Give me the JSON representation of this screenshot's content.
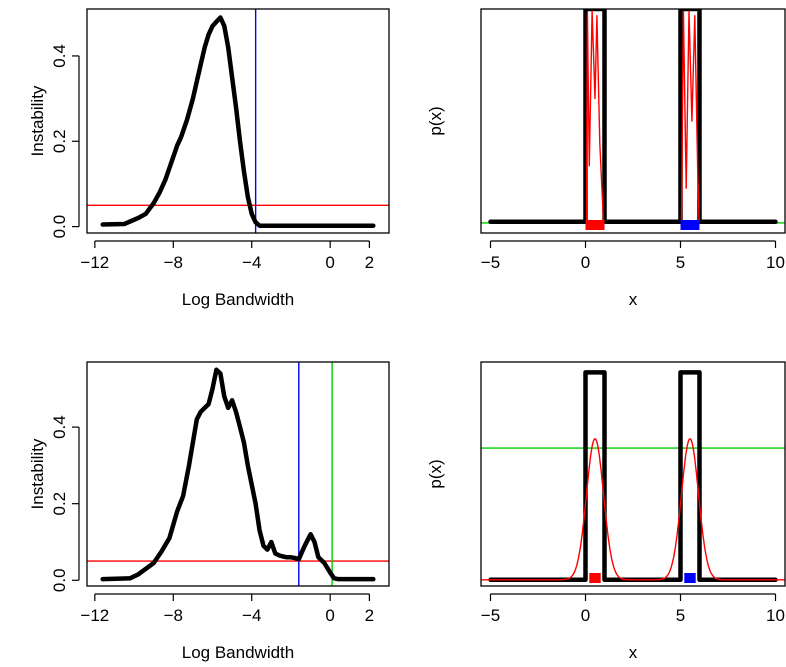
{
  "chart_data": [
    {
      "type": "line",
      "panel": "top-left",
      "xlabel": "Log Bandwidth",
      "ylabel": "Instability",
      "xlim": [
        -12.4,
        3.0
      ],
      "ylim": [
        -0.015,
        0.51
      ],
      "xticks": [
        -12,
        -8,
        -4,
        0,
        2
      ],
      "yticks": [
        0.0,
        0.2,
        0.4
      ],
      "series": [
        {
          "style": "thick-black",
          "x": [
            -11.6,
            -10.5,
            -10.2,
            -9.8,
            -9.4,
            -9.0,
            -8.7,
            -8.4,
            -8.1,
            -7.8,
            -7.6,
            -7.3,
            -7.0,
            -6.8,
            -6.6,
            -6.4,
            -6.2,
            -6.0,
            -5.8,
            -5.6,
            -5.4,
            -5.2,
            -5.0,
            -4.8,
            -4.6,
            -4.4,
            -4.2,
            -4.0,
            -3.8,
            -3.6,
            -3.0,
            -2.0,
            0.0,
            2.2
          ],
          "y": [
            0.005,
            0.006,
            0.012,
            0.02,
            0.03,
            0.055,
            0.08,
            0.11,
            0.15,
            0.19,
            0.21,
            0.25,
            0.3,
            0.34,
            0.38,
            0.42,
            0.45,
            0.47,
            0.48,
            0.49,
            0.47,
            0.42,
            0.35,
            0.28,
            0.2,
            0.13,
            0.07,
            0.03,
            0.01,
            0.002,
            0.002,
            0.002,
            0.002,
            0.002
          ]
        }
      ],
      "hlines": [
        {
          "y": 0.05,
          "color": "#ff0000"
        }
      ],
      "vlines": [
        {
          "x": -3.8,
          "color": "#0000ff"
        }
      ]
    },
    {
      "type": "line",
      "panel": "top-right",
      "xlabel": "x",
      "ylabel": "p(x)",
      "xlim": [
        -5.5,
        10.5
      ],
      "ylim": [
        0,
        1
      ],
      "xticks": [
        -5,
        0,
        5,
        10
      ],
      "series": [
        {
          "style": "thick-black",
          "x": [
            -5,
            0,
            0,
            1,
            1,
            5,
            5,
            6,
            6,
            10
          ],
          "y": [
            0.05,
            0.05,
            1,
            1,
            0.05,
            0.05,
            1,
            1,
            0.05,
            0.05
          ]
        },
        {
          "style": "thin-red",
          "x": [
            0.05,
            0.1,
            0.2,
            0.35,
            0.5,
            0.6,
            0.75,
            0.95
          ],
          "y": [
            0.05,
            0.98,
            0.3,
            0.99,
            0.6,
            0.97,
            0.4,
            0.05
          ]
        },
        {
          "style": "thin-red",
          "x": [
            5.05,
            5.15,
            5.3,
            5.45,
            5.6,
            5.75,
            5.9,
            5.98
          ],
          "y": [
            0.05,
            0.99,
            0.2,
            0.99,
            0.5,
            0.97,
            0.3,
            0.05
          ]
        }
      ],
      "hlines": [
        {
          "y": 0.045,
          "color": "#00cc00"
        }
      ],
      "rugs": [
        {
          "from": 0.0,
          "to": 1.0,
          "color": "#ff0000"
        },
        {
          "from": 5.0,
          "to": 6.0,
          "color": "#0000ff"
        }
      ]
    },
    {
      "type": "line",
      "panel": "bottom-left",
      "xlabel": "Log Bandwidth",
      "ylabel": "Instability",
      "xlim": [
        -12.4,
        3.0
      ],
      "ylim": [
        -0.015,
        0.57
      ],
      "xticks": [
        -12,
        -8,
        -4,
        0,
        2
      ],
      "yticks": [
        0.0,
        0.2,
        0.4
      ],
      "series": [
        {
          "style": "thick-black",
          "x": [
            -11.6,
            -10.2,
            -9.8,
            -9.4,
            -9.0,
            -8.6,
            -8.2,
            -7.8,
            -7.5,
            -7.2,
            -7.0,
            -6.8,
            -6.6,
            -6.4,
            -6.2,
            -6.0,
            -5.8,
            -5.6,
            -5.4,
            -5.2,
            -5.0,
            -4.8,
            -4.6,
            -4.4,
            -4.2,
            -4.0,
            -3.8,
            -3.6,
            -3.4,
            -3.2,
            -3.0,
            -2.8,
            -2.6,
            -2.4,
            -2.2,
            -2.0,
            -1.8,
            -1.6,
            -1.3,
            -1.0,
            -0.8,
            -0.6,
            -0.3,
            0.0,
            0.2,
            0.4,
            2.2
          ],
          "y": [
            0.003,
            0.005,
            0.015,
            0.03,
            0.045,
            0.075,
            0.11,
            0.18,
            0.22,
            0.3,
            0.36,
            0.42,
            0.44,
            0.45,
            0.46,
            0.5,
            0.55,
            0.54,
            0.48,
            0.45,
            0.47,
            0.44,
            0.4,
            0.36,
            0.3,
            0.25,
            0.2,
            0.13,
            0.09,
            0.08,
            0.1,
            0.07,
            0.065,
            0.062,
            0.06,
            0.06,
            0.058,
            0.055,
            0.09,
            0.12,
            0.1,
            0.06,
            0.045,
            0.02,
            0.005,
            0.003,
            0.003
          ]
        }
      ],
      "hlines": [
        {
          "y": 0.05,
          "color": "#ff0000"
        }
      ],
      "vlines": [
        {
          "x": -1.6,
          "color": "#0000ff"
        },
        {
          "x": 0.1,
          "color": "#00cc00"
        }
      ]
    },
    {
      "type": "line",
      "panel": "bottom-right",
      "xlabel": "x",
      "ylabel": "p(x)",
      "xlim": [
        -5.5,
        10.5
      ],
      "ylim": [
        -0.03,
        1.05
      ],
      "xticks": [
        -5,
        0,
        5,
        10
      ],
      "series": [
        {
          "style": "thick-black",
          "x": [
            -5,
            0,
            0,
            1,
            1,
            5,
            5,
            6,
            6,
            10
          ],
          "y": [
            0,
            0,
            1,
            1,
            0,
            0,
            1,
            1,
            0,
            0
          ]
        },
        {
          "style": "thin-red",
          "kind": "gaussian-pair",
          "centers": [
            0.5,
            5.5
          ],
          "sd": 0.45,
          "peak": 0.68
        }
      ],
      "hlines": [
        {
          "y": 0.635,
          "color": "#00cc00"
        }
      ],
      "rugs": [
        {
          "from": 0.2,
          "to": 0.8,
          "color": "#ff0000"
        },
        {
          "from": 5.2,
          "to": 5.8,
          "color": "#0000ff"
        }
      ]
    }
  ]
}
